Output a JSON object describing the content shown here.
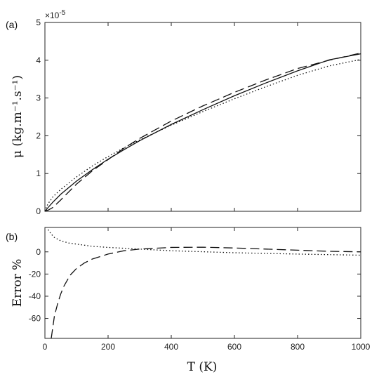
{
  "chart_data": [
    {
      "panel": "(a)",
      "type": "line",
      "xlabel": "T (K)",
      "ylabel": "μ (kg.m⁻¹.s⁻¹)",
      "y_multiplier": "×10⁻⁵",
      "xlim": [
        0,
        1000
      ],
      "ylim": [
        0,
        5
      ],
      "xticks": [
        0,
        200,
        400,
        600,
        800,
        1000
      ],
      "yticks": [
        0,
        1,
        2,
        3,
        4,
        5
      ],
      "grid": false,
      "series": [
        {
          "style": "solid",
          "x": [
            0,
            5,
            10,
            25,
            50,
            100,
            150,
            200,
            250,
            300,
            400,
            500,
            600,
            700,
            800,
            900,
            1000
          ],
          "y": [
            0.0,
            0.05,
            0.1,
            0.24,
            0.45,
            0.8,
            1.1,
            1.38,
            1.63,
            1.87,
            2.3,
            2.69,
            3.06,
            3.4,
            3.72,
            4.01,
            4.17
          ]
        },
        {
          "style": "dashed",
          "x": [
            0,
            5,
            10,
            25,
            50,
            100,
            150,
            200,
            250,
            300,
            400,
            500,
            600,
            700,
            800,
            900,
            1000
          ],
          "y": [
            0.0,
            0.02,
            0.03,
            0.1,
            0.3,
            0.72,
            1.07,
            1.37,
            1.67,
            1.93,
            2.39,
            2.79,
            3.15,
            3.48,
            3.78,
            4.0,
            4.19
          ]
        },
        {
          "style": "dotted",
          "x": [
            0,
            5,
            10,
            25,
            50,
            100,
            150,
            200,
            250,
            300,
            400,
            500,
            600,
            700,
            800,
            900,
            1000
          ],
          "y": [
            0.0,
            0.12,
            0.2,
            0.38,
            0.58,
            0.91,
            1.2,
            1.45,
            1.68,
            1.89,
            2.28,
            2.64,
            2.98,
            3.3,
            3.6,
            3.85,
            4.02
          ]
        }
      ]
    },
    {
      "panel": "(b)",
      "type": "line",
      "xlabel": "T (K)",
      "ylabel": "Error %",
      "xlim": [
        0,
        1000
      ],
      "ylim": [
        -78,
        22
      ],
      "xticks": [
        0,
        200,
        400,
        600,
        800,
        1000
      ],
      "yticks": [
        0,
        -20,
        -40,
        -60
      ],
      "grid": false,
      "series": [
        {
          "style": "dashed",
          "x": [
            20,
            30,
            40,
            50,
            60,
            80,
            100,
            125,
            150,
            200,
            250,
            300,
            400,
            500,
            600,
            700,
            800,
            900,
            1000
          ],
          "y": [
            -78,
            -58,
            -47,
            -38,
            -31,
            -21,
            -15,
            -10,
            -6.5,
            -2,
            1,
            2.5,
            4,
            4.2,
            3.5,
            2.5,
            1.5,
            0.5,
            0
          ]
        },
        {
          "style": "dotted",
          "x": [
            10,
            20,
            30,
            50,
            75,
            100,
            150,
            200,
            300,
            400,
            600,
            800,
            1000
          ],
          "y": [
            20,
            16,
            13,
            10,
            8,
            7,
            5,
            4,
            2.5,
            1,
            -0.8,
            -2,
            -3
          ]
        }
      ]
    }
  ],
  "labels": {
    "panel_a": "(a)",
    "panel_b": "(b)",
    "multiplier_base": "×10",
    "multiplier_exp": "-5",
    "ylabel_a": "μ  (kg.m⁻¹.s⁻¹)",
    "ylabel_b": "Error %",
    "xlabel": "T  (K)"
  }
}
